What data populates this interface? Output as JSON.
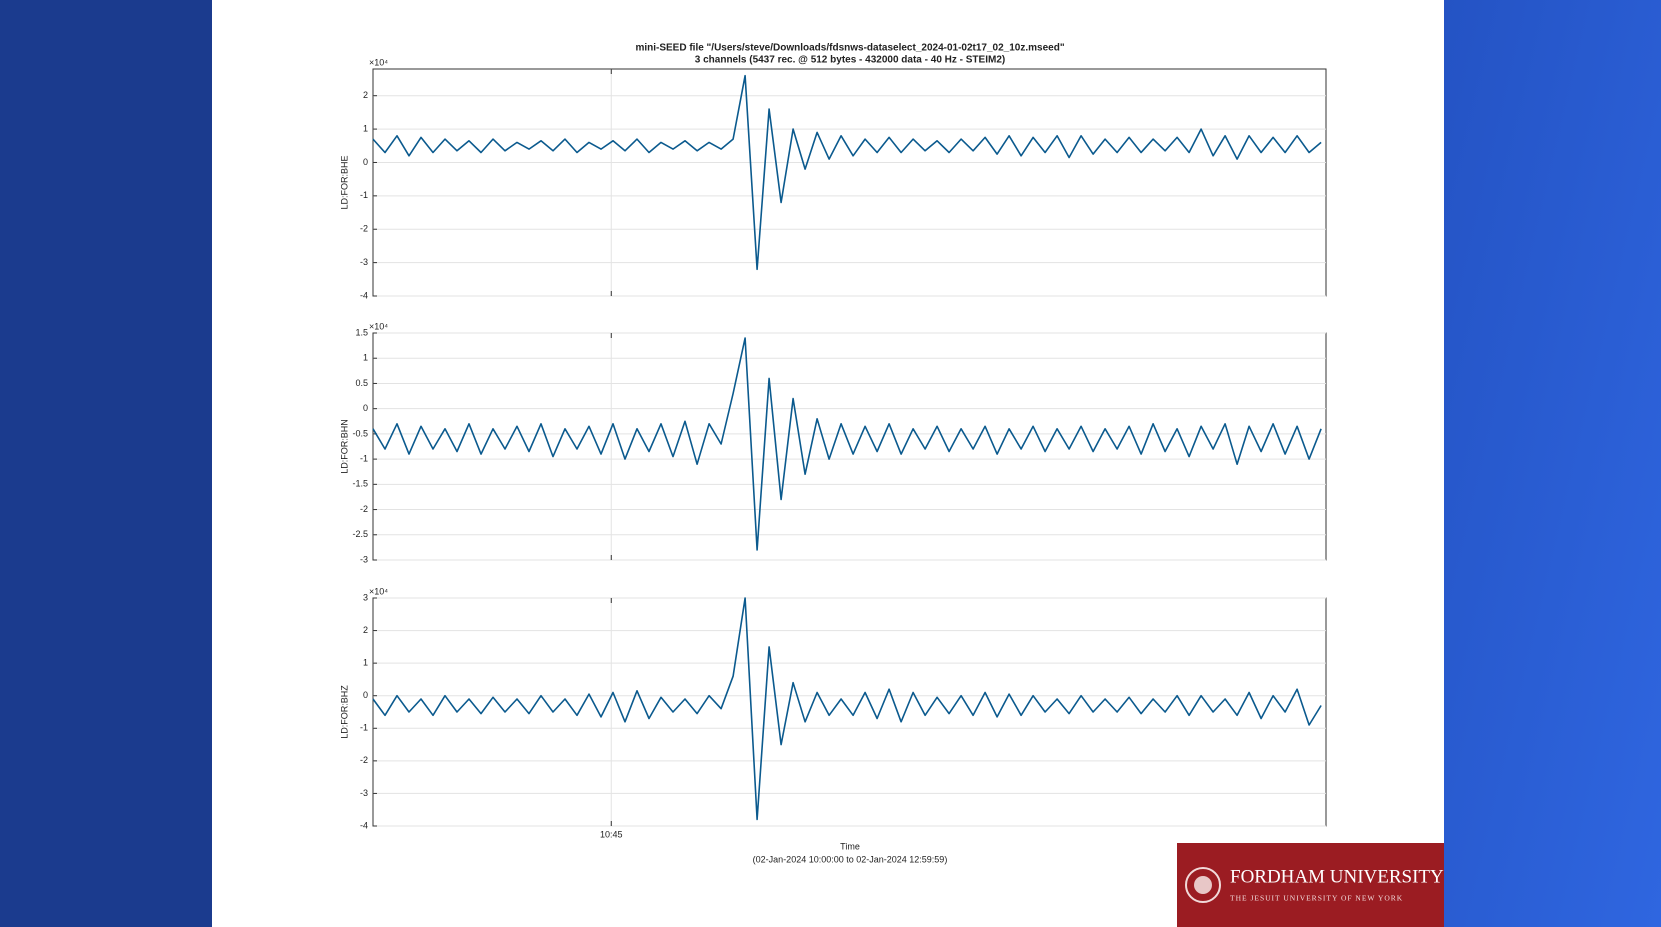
{
  "chart_data": {
    "type": "line",
    "title": "mini-SEED file \"/Users/steve/Downloads/fdsnws-dataselect_2024-01-02t17_02_10z.mseed\"",
    "subtitle": "3 channels (5437 rec. @ 512 bytes - 432000 data - 40 Hz - STEIM2)",
    "xlabel": "Time",
    "caption": "(02-Jan-2024 10:00:00 to 02-Jan-2024 12:59:59)",
    "xlim": [
      0,
      10799
    ],
    "xticks": [
      {
        "value": 2700,
        "label": "10:45"
      }
    ],
    "x": [
      0,
      136,
      272,
      408,
      544,
      680,
      816,
      952,
      1088,
      1224,
      1360,
      1496,
      1632,
      1768,
      1904,
      2040,
      2176,
      2312,
      2448,
      2584,
      2720,
      2856,
      2992,
      3128,
      3264,
      3400,
      3536,
      3672,
      3808,
      3944,
      4080,
      4216,
      4352,
      4488,
      4624,
      4760,
      4896,
      5032,
      5168,
      5304,
      5440,
      5576,
      5712,
      5848,
      5984,
      6120,
      6256,
      6392,
      6528,
      6664,
      6800,
      6936,
      7072,
      7208,
      7344,
      7480,
      7616,
      7752,
      7888,
      8024,
      8160,
      8296,
      8432,
      8568,
      8704,
      8840,
      8976,
      9112,
      9248,
      9384,
      9520,
      9656,
      9792,
      9928,
      10064,
      10200,
      10336,
      10472,
      10608,
      10744
    ],
    "grid": true,
    "panels": [
      {
        "ylabel": "LD:FOR:BHE",
        "exponent": "×10⁴",
        "color": "#0b5a8e",
        "ylim": [
          -4,
          2.8
        ],
        "yticks": [
          -4,
          -3,
          -2,
          -1,
          0,
          1,
          2
        ],
        "values": [
          0.7,
          0.3,
          0.8,
          0.2,
          0.75,
          0.3,
          0.7,
          0.35,
          0.65,
          0.3,
          0.7,
          0.35,
          0.6,
          0.4,
          0.65,
          0.35,
          0.7,
          0.3,
          0.6,
          0.4,
          0.65,
          0.35,
          0.7,
          0.3,
          0.6,
          0.4,
          0.65,
          0.35,
          0.6,
          0.4,
          0.7,
          2.6,
          -3.2,
          1.6,
          -1.2,
          1.0,
          -0.2,
          0.9,
          0.1,
          0.8,
          0.2,
          0.7,
          0.3,
          0.75,
          0.3,
          0.7,
          0.35,
          0.65,
          0.3,
          0.7,
          0.35,
          0.75,
          0.25,
          0.8,
          0.2,
          0.75,
          0.3,
          0.8,
          0.15,
          0.8,
          0.25,
          0.7,
          0.3,
          0.75,
          0.3,
          0.7,
          0.35,
          0.75,
          0.3,
          1.0,
          0.2,
          0.8,
          0.1,
          0.8,
          0.3,
          0.75,
          0.3,
          0.8,
          0.3,
          0.6
        ]
      },
      {
        "ylabel": "LD:FOR:BHN",
        "exponent": "×10⁴",
        "color": "#0b5a8e",
        "ylim": [
          -3,
          1.5
        ],
        "yticks": [
          -3,
          -2.5,
          -2,
          -1.5,
          -1,
          -0.5,
          0,
          0.5,
          1,
          1.5
        ],
        "values": [
          -0.4,
          -0.8,
          -0.3,
          -0.9,
          -0.35,
          -0.8,
          -0.4,
          -0.85,
          -0.3,
          -0.9,
          -0.4,
          -0.8,
          -0.35,
          -0.85,
          -0.3,
          -0.95,
          -0.4,
          -0.8,
          -0.35,
          -0.9,
          -0.3,
          -1.0,
          -0.4,
          -0.85,
          -0.3,
          -0.95,
          -0.25,
          -1.1,
          -0.3,
          -0.7,
          0.3,
          1.4,
          -2.8,
          0.6,
          -1.8,
          0.2,
          -1.3,
          -0.2,
          -1.0,
          -0.3,
          -0.9,
          -0.35,
          -0.85,
          -0.3,
          -0.9,
          -0.4,
          -0.8,
          -0.35,
          -0.85,
          -0.4,
          -0.8,
          -0.35,
          -0.9,
          -0.4,
          -0.8,
          -0.35,
          -0.85,
          -0.4,
          -0.8,
          -0.35,
          -0.85,
          -0.4,
          -0.8,
          -0.35,
          -0.9,
          -0.3,
          -0.85,
          -0.4,
          -0.95,
          -0.35,
          -0.8,
          -0.3,
          -1.1,
          -0.35,
          -0.85,
          -0.3,
          -0.9,
          -0.35,
          -1.0,
          -0.4
        ]
      },
      {
        "ylabel": "LD:FOR:BHZ",
        "exponent": "×10⁴",
        "color": "#0b5a8e",
        "ylim": [
          -4,
          3
        ],
        "yticks": [
          -4,
          -3,
          -2,
          -1,
          0,
          1,
          2,
          3
        ],
        "values": [
          -0.1,
          -0.6,
          0.0,
          -0.5,
          -0.1,
          -0.6,
          0.0,
          -0.5,
          -0.1,
          -0.55,
          -0.05,
          -0.5,
          -0.1,
          -0.55,
          0.0,
          -0.5,
          -0.1,
          -0.6,
          0.05,
          -0.65,
          0.1,
          -0.8,
          0.15,
          -0.7,
          -0.05,
          -0.5,
          -0.1,
          -0.55,
          0.0,
          -0.4,
          0.6,
          3.0,
          -3.8,
          1.5,
          -1.5,
          0.4,
          -0.8,
          0.1,
          -0.6,
          -0.1,
          -0.6,
          0.1,
          -0.7,
          0.2,
          -0.8,
          0.1,
          -0.6,
          -0.05,
          -0.55,
          0.0,
          -0.6,
          0.1,
          -0.65,
          0.05,
          -0.6,
          0.0,
          -0.5,
          -0.1,
          -0.55,
          0.0,
          -0.5,
          -0.1,
          -0.5,
          -0.05,
          -0.55,
          -0.1,
          -0.5,
          0.0,
          -0.6,
          0.0,
          -0.5,
          -0.1,
          -0.6,
          0.1,
          -0.7,
          0.0,
          -0.5,
          0.2,
          -0.9,
          -0.3
        ]
      }
    ]
  },
  "branding": {
    "name": "FORDHAM UNIVERSITY",
    "tagline": "THE JESUIT UNIVERSITY OF NEW YORK"
  }
}
